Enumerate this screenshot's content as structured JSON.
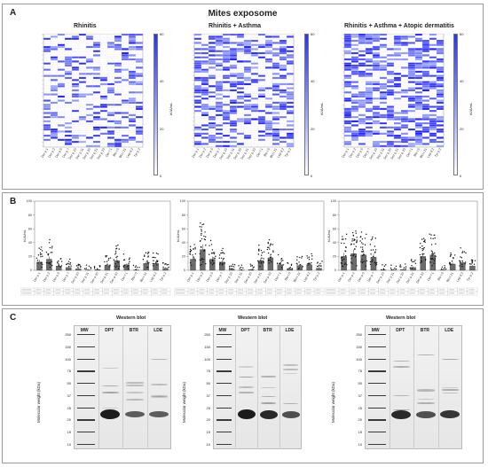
{
  "figure": {
    "panel_a": {
      "letter": "A",
      "title": "Mites exposome",
      "subtitles": [
        "Rhinitis",
        "Rhinitis + Asthma",
        "Rhinitis + Asthma + Atopic dermatitis"
      ],
      "colorbar": {
        "label": "kUA/mL",
        "ticks": [
          "60",
          "40",
          "20",
          "0"
        ],
        "high_color": "#2732ff",
        "low_color": "#ffffff"
      },
      "x_allergens": [
        "Der p 1",
        "Der p 2",
        "Der p 5",
        "Der p 7",
        "Der p 10",
        "Der p 11",
        "Der p 20",
        "Der p 21",
        "Der p 23",
        "Der f 1",
        "Blo t 5",
        "Blo t 21",
        "Lep d 2",
        "Tyr p 2"
      ]
    },
    "panel_b": {
      "letter": "B",
      "ylabel": "kUA/mL",
      "yticks": [
        "100",
        "80",
        "60",
        "40",
        "20",
        "0"
      ],
      "bar_color": "#6b6b6b",
      "charts": [
        {
          "values": [
            12,
            16,
            6,
            4,
            2,
            0.5,
            1,
            7,
            14,
            8,
            0.5,
            10,
            10,
            3
          ]
        },
        {
          "values": [
            16,
            30,
            16,
            12,
            2,
            0.5,
            1,
            14,
            18,
            8,
            2,
            7,
            8,
            3
          ]
        },
        {
          "values": [
            20,
            24,
            22,
            19,
            0.5,
            0.5,
            1,
            4,
            20,
            22,
            0.5,
            9,
            11,
            6
          ]
        }
      ]
    },
    "panel_c": {
      "letter": "C",
      "blots": [
        {
          "title": "Western blot",
          "lanes": [
            "MW",
            "DPT",
            "BTR",
            "LDE"
          ],
          "ylabel": "Molecular weight (kDa)",
          "mw_marks": [
            "250",
            "150",
            "100",
            "75",
            "50",
            "37",
            "25",
            "20",
            "15",
            "10"
          ]
        },
        {
          "title": "Western blot",
          "lanes": [
            "MW",
            "DPT",
            "BTR",
            "LDE"
          ],
          "ylabel": "Molecular weight (kDa)",
          "mw_marks": [
            "250",
            "150",
            "100",
            "75",
            "50",
            "37",
            "25",
            "20",
            "15",
            "10"
          ]
        },
        {
          "title": "Western blot",
          "lanes": [
            "MW",
            "DPT",
            "BTR",
            "LDE"
          ],
          "ylabel": "Molecular weight (kDa)",
          "mw_marks": [
            "250",
            "150",
            "100",
            "75",
            "50",
            "37",
            "25",
            "20",
            "15",
            "10"
          ]
        }
      ]
    }
  },
  "chart_data": [
    {
      "type": "bar",
      "categories": [
        "Der p 1",
        "Der p 2",
        "Der p 5",
        "Der p 7",
        "Der p 10",
        "Der p 11",
        "Der p 20",
        "Der p 21",
        "Der p 23",
        "Der f 1",
        "Blo t 5",
        "Blo t 21",
        "Lep d 2",
        "Tyr p 2"
      ],
      "values": [
        12,
        16,
        6,
        4,
        2,
        0.5,
        1,
        7,
        14,
        8,
        0.5,
        10,
        10,
        3
      ],
      "ylabel": "kUA/mL",
      "ylim": [
        0,
        100
      ]
    },
    {
      "type": "bar",
      "categories": [
        "Der p 1",
        "Der p 2",
        "Der p 5",
        "Der p 7",
        "Der p 10",
        "Der p 11",
        "Der p 20",
        "Der p 21",
        "Der p 23",
        "Der f 1",
        "Blo t 5",
        "Blo t 21",
        "Lep d 2",
        "Tyr p 2"
      ],
      "values": [
        16,
        30,
        16,
        12,
        2,
        0.5,
        1,
        14,
        18,
        8,
        2,
        7,
        8,
        3
      ],
      "ylabel": "kUA/mL",
      "ylim": [
        0,
        100
      ]
    },
    {
      "type": "bar",
      "categories": [
        "Der p 1",
        "Der p 2",
        "Der p 5",
        "Der p 7",
        "Der p 10",
        "Der p 11",
        "Der p 20",
        "Der p 21",
        "Der p 23",
        "Der f 1",
        "Blo t 5",
        "Blo t 21",
        "Lep d 2",
        "Tyr p 2"
      ],
      "values": [
        20,
        24,
        22,
        19,
        0.5,
        0.5,
        1,
        4,
        20,
        22,
        0.5,
        9,
        11,
        6
      ],
      "ylabel": "kUA/mL",
      "ylim": [
        0,
        100
      ]
    }
  ]
}
